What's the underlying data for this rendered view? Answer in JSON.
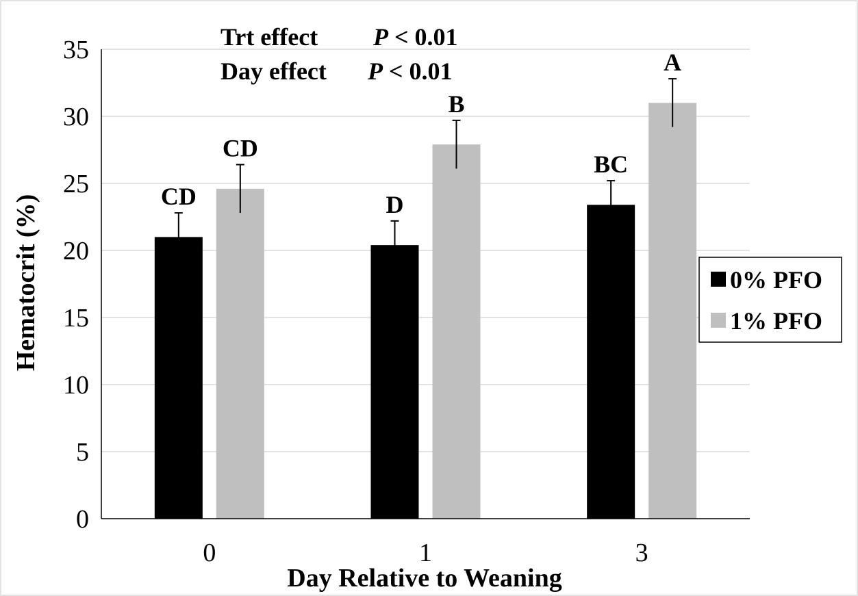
{
  "chart_data": {
    "type": "bar",
    "categories": [
      "0",
      "1",
      "3"
    ],
    "series": [
      {
        "name": "0% PFO",
        "color": "#000000",
        "values": [
          21.0,
          20.4,
          23.4
        ],
        "errors": [
          1.8,
          1.8,
          1.8
        ],
        "letters": [
          "CD",
          "D",
          "BC"
        ]
      },
      {
        "name": "1% PFO",
        "color": "#bfbfbf",
        "values": [
          24.6,
          27.9,
          31.0
        ],
        "errors": [
          1.8,
          1.8,
          1.8
        ],
        "letters": [
          "CD",
          "B",
          "A"
        ]
      }
    ],
    "xlabel": "Day Relative to Weaning",
    "ylabel": "Hematocrit (%)",
    "ylim": [
      0,
      35
    ],
    "yticks": [
      0,
      5,
      10,
      15,
      20,
      25,
      30,
      35
    ],
    "grid": true,
    "legend_position": "right",
    "annotations": [
      {
        "label": "Trt effect",
        "p_symbol": "P",
        "p_value": " < 0.01"
      },
      {
        "label": "Day effect",
        "p_symbol": "P",
        "p_value": " < 0.01"
      }
    ]
  }
}
